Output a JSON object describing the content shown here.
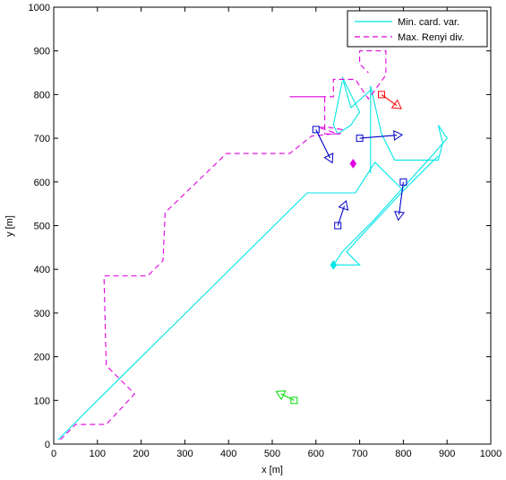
{
  "chart_data": {
    "type": "line",
    "title": "",
    "xlabel": "x [m]",
    "ylabel": "y [m]",
    "xlim": [
      0,
      1000
    ],
    "ylim": [
      0,
      1000
    ],
    "xticks": [
      0,
      100,
      200,
      300,
      400,
      500,
      600,
      700,
      800,
      900,
      1000
    ],
    "yticks": [
      0,
      100,
      200,
      300,
      400,
      500,
      600,
      700,
      800,
      900,
      1000
    ],
    "grid": false,
    "legend_position": "top-right",
    "series": [
      {
        "name": "Min. card. var.",
        "color": "#00e5e5",
        "style": "solid",
        "points": [
          [
            10,
            10
          ],
          [
            100,
            100
          ],
          [
            580,
            575
          ],
          [
            690,
            575
          ],
          [
            735,
            645
          ],
          [
            800,
            580
          ],
          [
            860,
            640
          ],
          [
            880,
            660
          ],
          [
            800,
            580
          ],
          [
            730,
            505
          ],
          [
            725,
            500
          ],
          [
            670,
            440
          ],
          [
            700,
            410
          ],
          [
            640,
            410
          ],
          [
            660,
            440
          ],
          [
            730,
            510
          ],
          [
            870,
            665
          ],
          [
            900,
            700
          ],
          [
            880,
            730
          ],
          [
            890,
            690
          ],
          [
            885,
            670
          ],
          [
            880,
            650
          ],
          [
            780,
            650
          ],
          [
            750,
            710
          ],
          [
            725,
            820
          ],
          [
            725,
            620
          ],
          [
            725,
            810
          ],
          [
            680,
            770
          ],
          [
            660,
            840
          ],
          [
            700,
            760
          ],
          [
            680,
            730
          ],
          [
            650,
            710
          ],
          [
            640,
            730
          ],
          [
            660,
            830
          ]
        ]
      },
      {
        "name": "Max. Renyi div.",
        "color": "#e000e0",
        "style": "dashed",
        "points": [
          [
            15,
            10
          ],
          [
            50,
            45
          ],
          [
            120,
            45
          ],
          [
            185,
            115
          ],
          [
            155,
            145
          ],
          [
            120,
            180
          ],
          [
            115,
            385
          ],
          [
            215,
            385
          ],
          [
            250,
            420
          ],
          [
            255,
            530
          ],
          [
            395,
            665
          ],
          [
            540,
            665
          ],
          [
            590,
            705
          ],
          [
            640,
            710
          ],
          [
            655,
            710
          ],
          [
            660,
            720
          ],
          [
            630,
            725
          ],
          [
            605,
            725
          ],
          [
            650,
            710
          ],
          [
            620,
            710
          ],
          [
            620,
            795
          ],
          [
            540,
            795
          ],
          [
            580,
            795
          ],
          [
            640,
            795
          ],
          [
            640,
            835
          ],
          [
            690,
            835
          ],
          [
            720,
            790
          ],
          [
            760,
            845
          ],
          [
            760,
            900
          ],
          [
            700,
            900
          ],
          [
            700,
            870
          ],
          [
            720,
            850
          ]
        ]
      }
    ],
    "annotations": {
      "arrows": [
        {
          "color": "#0000cc",
          "from": [
            600,
            720
          ],
          "to": [
            632,
            655
          ]
        },
        {
          "color": "#0000cc",
          "from": [
            700,
            700
          ],
          "to": [
            785,
            707
          ]
        },
        {
          "color": "#0000cc",
          "from": [
            800,
            600
          ],
          "to": [
            790,
            525
          ]
        },
        {
          "color": "#0000cc",
          "from": [
            650,
            500
          ],
          "to": [
            665,
            545
          ]
        },
        {
          "color": "#ff0000",
          "from": [
            750,
            800
          ],
          "to": [
            785,
            775
          ]
        },
        {
          "color": "#00dd00",
          "from": [
            550,
            100
          ],
          "to": [
            520,
            115
          ]
        }
      ],
      "diamonds": [
        {
          "color": "#e000e0",
          "x": 685,
          "y": 642
        },
        {
          "color": "#00e5e5",
          "x": 640,
          "y": 410
        }
      ]
    }
  }
}
